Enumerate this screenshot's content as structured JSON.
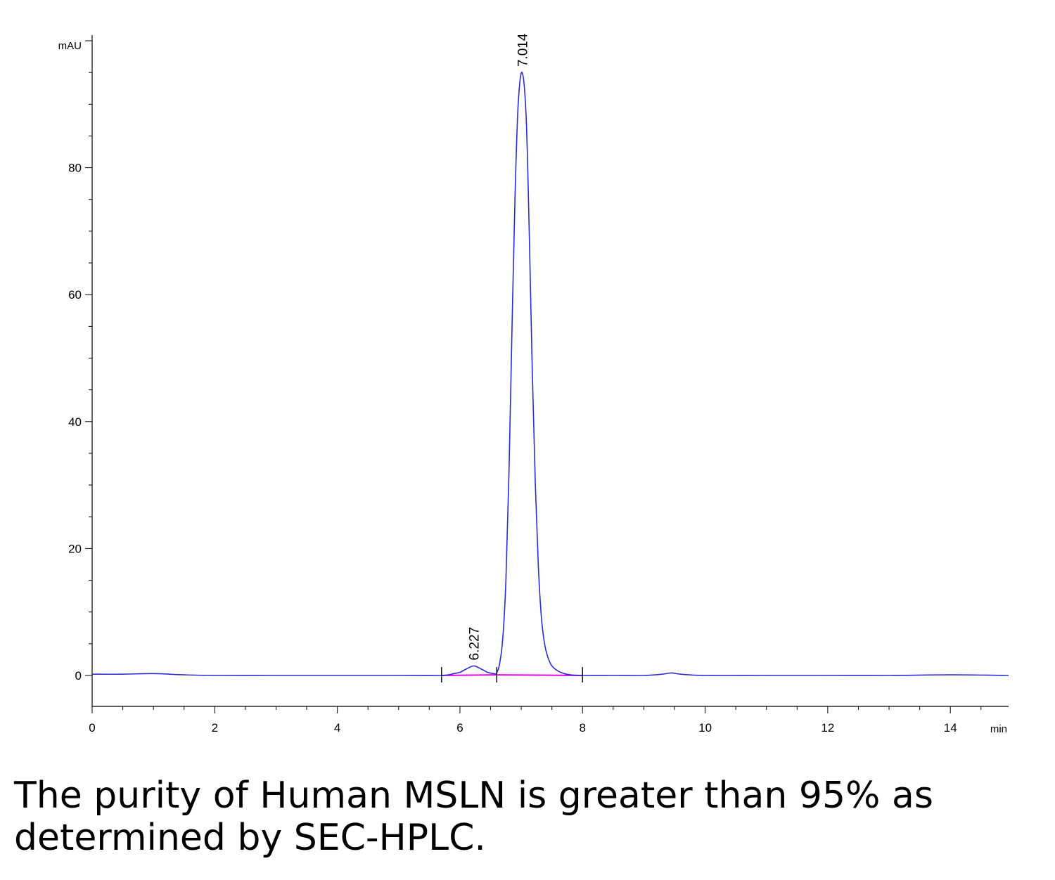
{
  "chart_data": {
    "type": "line",
    "title": "",
    "xlabel": "min",
    "ylabel": "mAU",
    "xlim": [
      0,
      14.95
    ],
    "ylim": [
      -5,
      100
    ],
    "x_ticks": [
      0,
      2,
      4,
      6,
      8,
      10,
      12,
      14
    ],
    "x_tick_labels": [
      "0",
      "2",
      "4",
      "6",
      "8",
      "10",
      "12",
      "14"
    ],
    "y_ticks": [
      0,
      20,
      40,
      60,
      80
    ],
    "y_tick_labels": [
      "0",
      "20",
      "40",
      "60",
      "80"
    ],
    "grid": false,
    "colors": {
      "trace": "#2b2bd9",
      "baseline": "#e600e6",
      "axis": "#000000"
    },
    "series": [
      {
        "x": [
          0,
          0.5,
          1.0,
          1.5,
          2.0,
          3.0,
          4.0,
          5.0,
          5.7,
          5.9,
          6.0,
          6.1,
          6.227,
          6.35,
          6.45,
          6.55,
          6.6,
          6.65,
          6.7,
          6.75,
          6.8,
          6.85,
          6.9,
          6.95,
          7.014,
          7.08,
          7.13,
          7.18,
          7.23,
          7.28,
          7.33,
          7.38,
          7.43,
          7.5,
          7.6,
          7.7,
          7.8,
          8.0,
          8.5,
          9.0,
          9.3,
          9.45,
          9.6,
          10.0,
          11.0,
          12.0,
          13.0,
          14.0,
          14.95
        ],
        "y": [
          0.2,
          0.2,
          0.3,
          0.1,
          0.0,
          0.0,
          0.0,
          0.0,
          0.0,
          0.3,
          0.5,
          1.0,
          1.5,
          1.0,
          0.5,
          0.3,
          0.4,
          2.0,
          6.0,
          15.0,
          32.0,
          55.0,
          76.0,
          90.0,
          95.0,
          88.0,
          70.0,
          48.0,
          30.0,
          17.0,
          9.0,
          5.0,
          3.0,
          1.5,
          0.7,
          0.3,
          0.1,
          0.0,
          0.0,
          0.0,
          0.2,
          0.4,
          0.2,
          0.0,
          0.0,
          0.0,
          0.0,
          0.1,
          0.0
        ]
      }
    ],
    "integration_baselines": [
      {
        "x": [
          5.7,
          6.6
        ],
        "y": [
          0.0,
          0.1
        ]
      },
      {
        "x": [
          6.6,
          8.0
        ],
        "y": [
          0.1,
          0.0
        ]
      }
    ],
    "peak_annotations": [
      {
        "label": "6.227",
        "x": 6.227,
        "y": 1.5
      },
      {
        "label": "7.014",
        "x": 7.014,
        "y": 95.0
      }
    ],
    "integration_markers": [
      5.7,
      6.6,
      8.0
    ]
  },
  "caption": "The purity of Human MSLN is greater than 95% as determined by SEC-HPLC."
}
